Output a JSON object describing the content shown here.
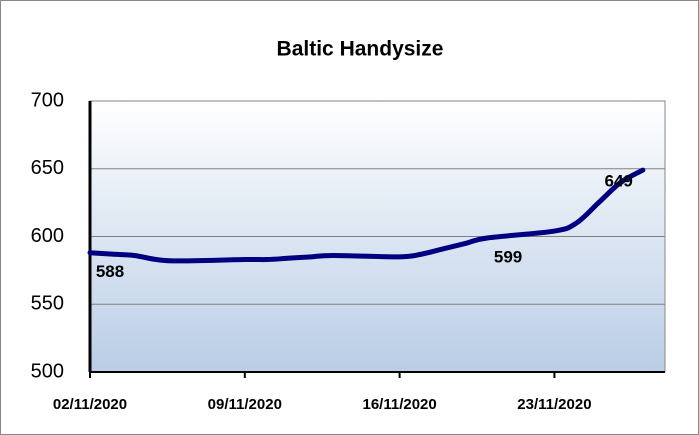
{
  "chart_data": {
    "type": "line",
    "title": "Baltic Handysize",
    "x": [
      "02/11/2020",
      "03/11/2020",
      "04/11/2020",
      "05/11/2020",
      "06/11/2020",
      "09/11/2020",
      "10/11/2020",
      "11/11/2020",
      "12/11/2020",
      "13/11/2020",
      "16/11/2020",
      "17/11/2020",
      "18/11/2020",
      "19/11/2020",
      "20/11/2020",
      "23/11/2020",
      "24/11/2020",
      "25/11/2020",
      "26/11/2020",
      "27/11/2020"
    ],
    "series": [
      {
        "name": "Baltic Handysize",
        "color": "#000080",
        "values": [
          588,
          587,
          586,
          583,
          582,
          583,
          583,
          584,
          585,
          586,
          585,
          587,
          591,
          595,
          599,
          604,
          610,
          625,
          640,
          649
        ],
        "value_labels": [
          "588",
          null,
          null,
          null,
          null,
          null,
          null,
          null,
          null,
          null,
          null,
          null,
          null,
          null,
          "599",
          null,
          null,
          null,
          null,
          "649"
        ]
      }
    ],
    "xlim": [
      "02/11/2020",
      "28/11/2020"
    ],
    "xticks": [
      "02/11/2020",
      "09/11/2020",
      "16/11/2020",
      "23/11/2020"
    ],
    "ylim": [
      500,
      700
    ],
    "yticks": [
      500,
      550,
      600,
      650,
      700
    ],
    "grid": true
  }
}
